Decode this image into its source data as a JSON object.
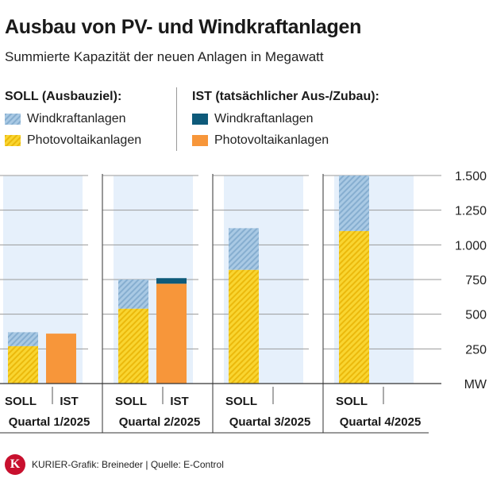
{
  "header": {
    "title": "Ausbau von PV- und Windkraftanlagen",
    "subtitle": "Summierte Kapazität der neuen Anlagen in Megawatt"
  },
  "legend": {
    "soll_heading": "SOLL (Ausbauziel):",
    "ist_heading": "IST (tatsächlicher Aus-/Zubau):",
    "soll_items": [
      {
        "label": "Windkraftanlagen",
        "swatch": "soll-wind"
      },
      {
        "label": "Photovoltaikanlagen",
        "swatch": "soll-pv"
      }
    ],
    "ist_items": [
      {
        "label": "Windkraftanlagen",
        "swatch": "ist-wind"
      },
      {
        "label": "Photovoltaikanlagen",
        "swatch": "ist-pv"
      }
    ]
  },
  "colors": {
    "soll_wind": "#9ec1de",
    "soll_wind_stripe": "#7fa8cc",
    "soll_pv": "#f7d02a",
    "soll_pv_stripe": "#e8b90a",
    "ist_wind": "#0e5a7a",
    "ist_pv": "#f7963a",
    "panel_bg": "#e6f0fb"
  },
  "chart_data": {
    "type": "bar",
    "stacked": true,
    "categories": [
      "Quartal 1/2025",
      "Quartal 2/2025",
      "Quartal 3/2025",
      "Quartal 4/2025"
    ],
    "bar_labels": [
      "SOLL",
      "IST"
    ],
    "unit": "MW",
    "ylim": [
      0,
      1500
    ],
    "yticks": [
      {
        "value": 250,
        "label": "250"
      },
      {
        "value": 500,
        "label": "500"
      },
      {
        "value": 750,
        "label": "750"
      },
      {
        "value": 1000,
        "label": "1.000"
      },
      {
        "value": 1250,
        "label": "1.250"
      },
      {
        "value": 1500,
        "label": "1.500"
      }
    ],
    "grid": true,
    "series": [
      {
        "group": "SOLL",
        "component": "Photovoltaikanlagen",
        "values": [
          270,
          540,
          820,
          1100
        ]
      },
      {
        "group": "SOLL",
        "component": "Windkraftanlagen",
        "values": [
          100,
          210,
          300,
          400
        ]
      },
      {
        "group": "IST",
        "component": "Photovoltaikanlagen",
        "values": [
          360,
          720,
          null,
          null
        ]
      },
      {
        "group": "IST",
        "component": "Windkraftanlagen",
        "values": [
          0,
          40,
          null,
          null
        ]
      }
    ]
  },
  "footer": {
    "logo_letter": "K",
    "credit": "KURIER-Grafik: Breineder | Quelle: E-Control"
  }
}
